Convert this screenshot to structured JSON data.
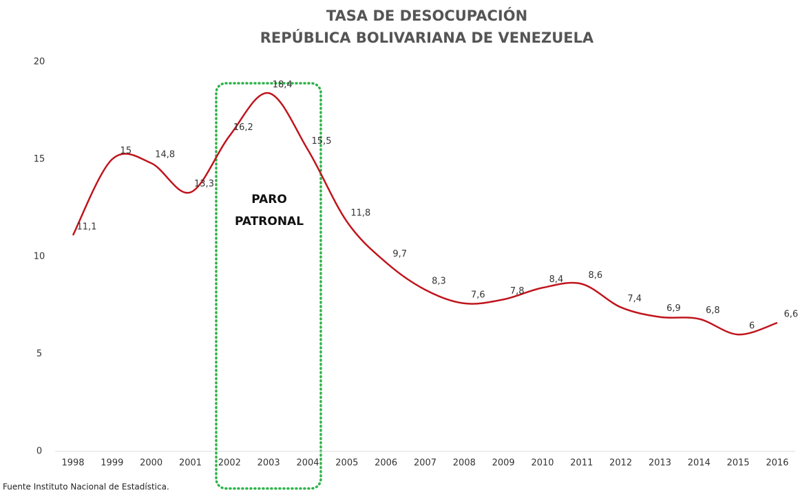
{
  "chart_data": {
    "type": "line",
    "title": [
      "TASA DE DESOCUPACIÓN",
      "REPÚBLICA BOLIVARIANA DE VENEZUELA"
    ],
    "categories": [
      "1998",
      "1999",
      "2000",
      "2001",
      "2002",
      "2003",
      "2004",
      "2005",
      "2006",
      "2007",
      "2008",
      "2009",
      "2010",
      "2011",
      "2012",
      "2013",
      "2014",
      "2015",
      "2016"
    ],
    "series": [
      {
        "name": "Tasa de desocupación",
        "color": "#c0141c",
        "values": [
          11.1,
          15,
          14.8,
          13.3,
          16.2,
          18.4,
          15.5,
          11.8,
          9.7,
          8.3,
          7.6,
          7.8,
          8.4,
          8.6,
          7.4,
          6.9,
          6.8,
          6,
          6.6
        ],
        "value_labels": [
          "11,1",
          "15",
          "14,8",
          "13,3",
          "16,2",
          "18,4",
          "15,5",
          "11,8",
          "9,7",
          "8,3",
          "7,6",
          "7,8",
          "8,4",
          "8,6",
          "7,4",
          "6,9",
          "6,8",
          "6",
          "6,6"
        ]
      }
    ],
    "ylim": [
      0,
      20
    ],
    "yticks": [
      0,
      5,
      10,
      15,
      20
    ],
    "grid": false,
    "annotation": [
      "PARO",
      "PATRONAL"
    ],
    "source": "Fuente Instituto Nacional de Estadística."
  }
}
